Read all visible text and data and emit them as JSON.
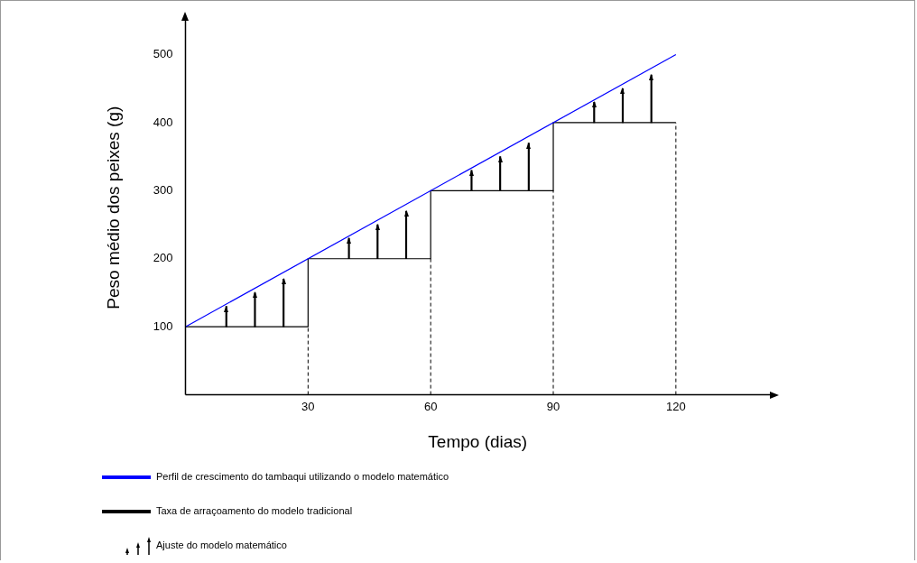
{
  "chart_data": {
    "type": "line",
    "xlabel": "Tempo (dias)",
    "ylabel": "Peso médio dos peixes (g)",
    "xlim": [
      0,
      143
    ],
    "xticks": [
      30,
      60,
      90,
      120
    ],
    "ylim": [
      0,
      550
    ],
    "yticks": [
      100,
      200,
      300,
      400,
      500
    ],
    "grid": false,
    "legend": "bottom",
    "series": [
      {
        "name": "Perfil de crescimento do tambaqui utilizando o modelo matemático",
        "color": "#0000ff",
        "x": [
          0,
          120
        ],
        "values": [
          100,
          500
        ]
      },
      {
        "name": "Taxa de arraçoamento do modelo tradicional",
        "type": "step",
        "color": "#000000",
        "x": [
          0,
          30,
          60,
          90,
          120
        ],
        "values": [
          100,
          200,
          300,
          400,
          400
        ]
      },
      {
        "name": "Ajuste do modelo matemático",
        "type": "bar",
        "marker": "triangle",
        "color": "#000000",
        "x": [
          10,
          17,
          24,
          40,
          47,
          54,
          70,
          77,
          84,
          100,
          107,
          114
        ],
        "base": [
          100,
          100,
          100,
          200,
          200,
          200,
          300,
          300,
          300,
          400,
          400,
          400
        ],
        "values": [
          30,
          50,
          70,
          30,
          50,
          70,
          30,
          50,
          70,
          30,
          50,
          70
        ]
      }
    ],
    "ref_lines": [
      {
        "axis": "x",
        "value": 30,
        "line_style": "dashed",
        "color": "#000000"
      },
      {
        "axis": "x",
        "value": 60,
        "line_style": "dashed",
        "color": "#000000"
      },
      {
        "axis": "x",
        "value": 90,
        "line_style": "dashed",
        "color": "#000000"
      },
      {
        "axis": "x",
        "value": 120,
        "line_style": "dashed",
        "color": "#000000"
      }
    ]
  }
}
